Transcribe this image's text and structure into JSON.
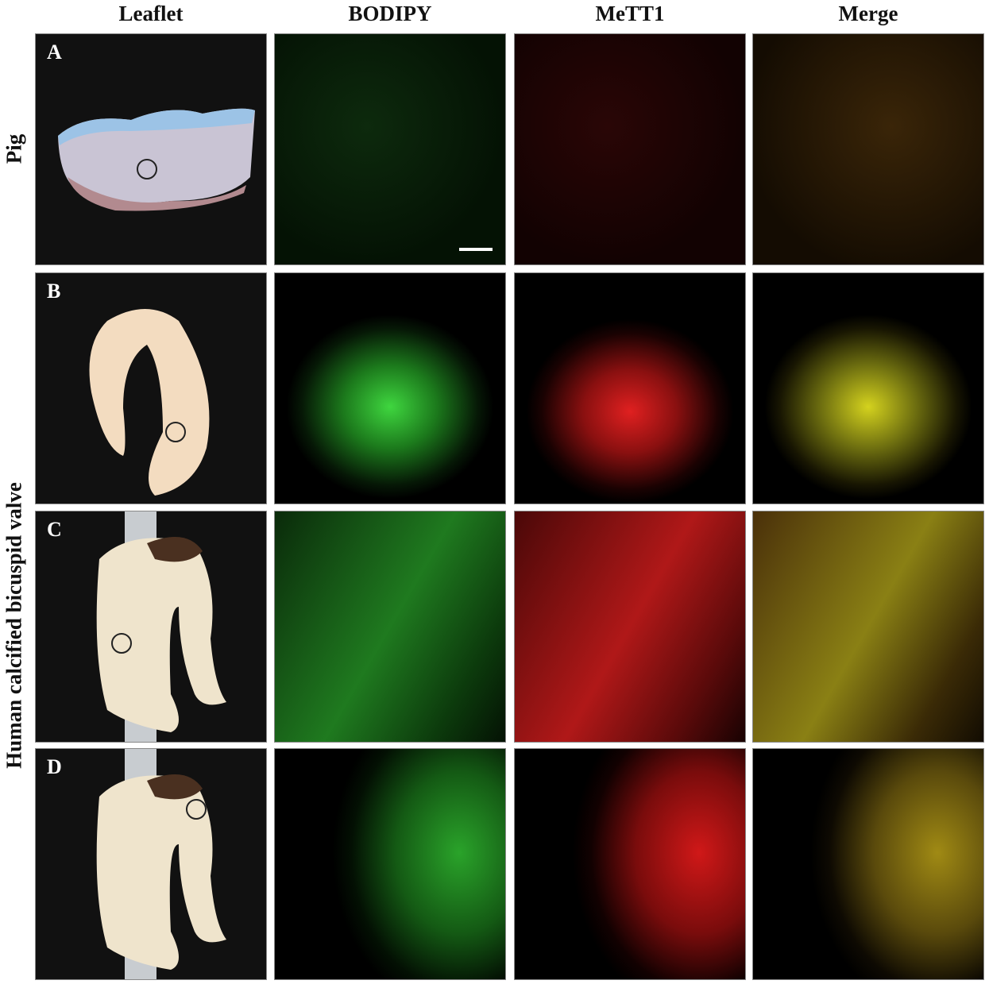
{
  "columns": [
    "Leaflet",
    "BODIPY",
    "MeTT1",
    "Merge"
  ],
  "row_groups": [
    {
      "label": "Pig"
    },
    {
      "label": "Human calcified bicuspid valve"
    }
  ],
  "rows": [
    {
      "letter": "A",
      "tone": "A"
    },
    {
      "letter": "B",
      "tone": "B"
    },
    {
      "letter": "C",
      "tone": "C"
    },
    {
      "letter": "D",
      "tone": "D"
    }
  ],
  "colors": {
    "bodipy": "#2ecc2e",
    "mett1": "#e02020",
    "merge": "#c8c020"
  }
}
